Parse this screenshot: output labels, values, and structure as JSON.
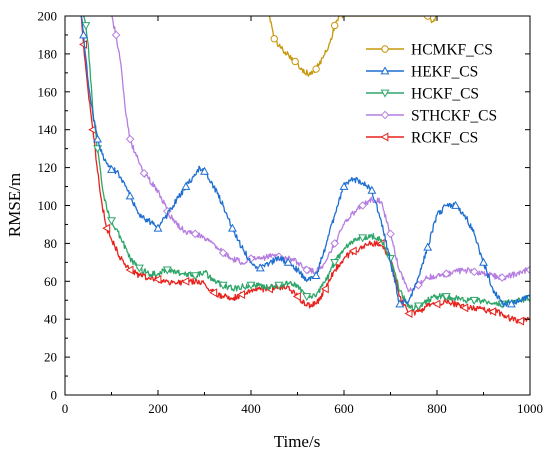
{
  "chart_data": {
    "type": "line",
    "xlabel": "Time/s",
    "ylabel": "RMSE/m",
    "xlim": [
      0,
      1000
    ],
    "ylim": [
      0,
      200
    ],
    "xticks": [
      0,
      200,
      400,
      600,
      800,
      1000
    ],
    "yticks": [
      0,
      20,
      40,
      60,
      80,
      100,
      120,
      140,
      160,
      180,
      200
    ],
    "grid": false,
    "legend_position": "top-right",
    "series": [
      {
        "name": "HCMKF_CS",
        "color": "#c8960c",
        "marker": "circle",
        "x": [
          440,
          450,
          465,
          480,
          495,
          510,
          525,
          540,
          555,
          570,
          580,
          590,
          600,
          780,
          790,
          800
        ],
        "y": [
          200,
          188,
          183,
          180,
          176,
          172,
          169,
          172,
          178,
          186,
          195,
          200,
          200,
          200,
          197,
          200
        ]
      },
      {
        "name": "HEKF_CS",
        "color": "#1f6fd1",
        "marker": "triangle-up",
        "x": [
          35,
          40,
          50,
          60,
          70,
          80,
          90,
          100,
          110,
          120,
          140,
          160,
          180,
          200,
          220,
          240,
          260,
          280,
          290,
          300,
          320,
          340,
          360,
          380,
          400,
          420,
          440,
          460,
          480,
          500,
          520,
          540,
          560,
          580,
          600,
          620,
          640,
          660,
          680,
          700,
          720,
          740,
          760,
          780,
          800,
          820,
          840,
          860,
          880,
          900,
          920,
          940,
          960,
          980,
          1000
        ],
        "y": [
          200,
          190,
          165,
          148,
          135,
          127,
          122,
          119,
          118,
          115,
          105,
          95,
          92,
          88,
          95,
          103,
          110,
          116,
          120,
          118,
          110,
          100,
          88,
          78,
          70,
          67,
          70,
          72,
          70,
          66,
          60,
          63,
          78,
          95,
          110,
          114,
          112,
          108,
          92,
          70,
          48,
          50,
          62,
          78,
          95,
          100,
          100,
          95,
          85,
          70,
          56,
          48,
          48,
          50,
          52
        ]
      },
      {
        "name": "HCKF_CS",
        "color": "#2ea66a",
        "marker": "triangle-down",
        "x": [
          40,
          45,
          50,
          60,
          70,
          80,
          90,
          100,
          120,
          140,
          160,
          180,
          200,
          220,
          240,
          260,
          280,
          300,
          320,
          340,
          360,
          380,
          400,
          420,
          440,
          460,
          480,
          500,
          520,
          540,
          560,
          580,
          600,
          620,
          640,
          660,
          680,
          700,
          720,
          740,
          760,
          780,
          800,
          820,
          840,
          860,
          880,
          900,
          920,
          940,
          960,
          980,
          1000
        ],
        "y": [
          200,
          195,
          185,
          150,
          130,
          110,
          98,
          92,
          83,
          72,
          67,
          64,
          64,
          66,
          65,
          64,
          63,
          65,
          60,
          58,
          56,
          57,
          58,
          58,
          57,
          58,
          59,
          58,
          52,
          52,
          60,
          70,
          77,
          81,
          83,
          84,
          82,
          72,
          55,
          46,
          47,
          50,
          52,
          52,
          51,
          50,
          50,
          49,
          48,
          48,
          49,
          50,
          51
        ]
      },
      {
        "name": "STHCKF_CS",
        "color": "#b57ee0",
        "marker": "diamond",
        "x": [
          100,
          110,
          120,
          130,
          140,
          150,
          160,
          170,
          180,
          200,
          220,
          240,
          260,
          280,
          300,
          320,
          340,
          360,
          380,
          400,
          420,
          440,
          460,
          480,
          500,
          520,
          540,
          560,
          580,
          600,
          620,
          640,
          660,
          680,
          700,
          720,
          740,
          760,
          780,
          800,
          820,
          840,
          860,
          880,
          900,
          920,
          940,
          960,
          980,
          1000
        ],
        "y": [
          200,
          190,
          175,
          150,
          135,
          128,
          122,
          117,
          114,
          108,
          97,
          90,
          86,
          85,
          83,
          80,
          75,
          72,
          70,
          72,
          72,
          73,
          73,
          72,
          70,
          66,
          65,
          70,
          80,
          90,
          96,
          100,
          103,
          102,
          85,
          65,
          55,
          58,
          62,
          63,
          64,
          65,
          66,
          65,
          64,
          63,
          62,
          63,
          65,
          66
        ]
      },
      {
        "name": "RCKF_CS",
        "color": "#e8221c",
        "marker": "triangle-left",
        "x": [
          35,
          40,
          45,
          50,
          60,
          70,
          80,
          90,
          100,
          120,
          140,
          160,
          180,
          200,
          220,
          240,
          260,
          280,
          300,
          320,
          340,
          360,
          380,
          400,
          420,
          440,
          460,
          480,
          500,
          520,
          540,
          560,
          580,
          600,
          620,
          640,
          660,
          680,
          700,
          720,
          740,
          760,
          780,
          800,
          820,
          840,
          860,
          880,
          900,
          920,
          940,
          960,
          980,
          1000
        ],
        "y": [
          200,
          185,
          172,
          160,
          140,
          118,
          100,
          88,
          82,
          72,
          66,
          63,
          62,
          61,
          60,
          59,
          60,
          60,
          59,
          54,
          52,
          51,
          53,
          55,
          56,
          56,
          57,
          57,
          52,
          47,
          48,
          56,
          66,
          72,
          76,
          78,
          80,
          80,
          72,
          52,
          43,
          44,
          47,
          48,
          49,
          48,
          46,
          46,
          45,
          44,
          43,
          40,
          39,
          40
        ]
      }
    ]
  }
}
